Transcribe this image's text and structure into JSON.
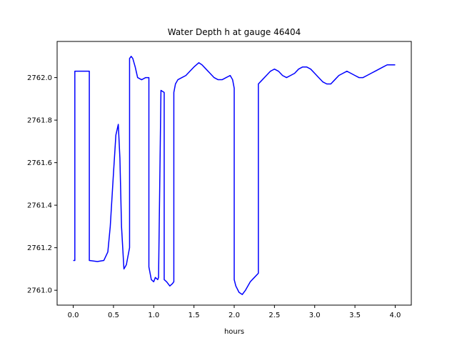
{
  "chart_data": {
    "type": "line",
    "title": "Water Depth h at gauge 46404",
    "xlabel": "hours",
    "ylabel": "",
    "xlim": [
      -0.2,
      4.2
    ],
    "ylim": [
      2760.93,
      2762.17
    ],
    "xticks": [
      0.0,
      0.5,
      1.0,
      1.5,
      2.0,
      2.5,
      3.0,
      3.5,
      4.0
    ],
    "xtick_labels": [
      "0.0",
      "0.5",
      "1.0",
      "1.5",
      "2.0",
      "2.5",
      "3.0",
      "3.5",
      "4.0"
    ],
    "yticks": [
      2761.0,
      2761.2,
      2761.4,
      2761.6,
      2761.8,
      2762.0
    ],
    "ytick_labels": [
      "2761.0",
      "2761.2",
      "2761.4",
      "2761.6",
      "2761.8",
      "2762.0"
    ],
    "grid": false,
    "series": [
      {
        "color": "#0000ff",
        "x": [
          0.0,
          0.02,
          0.02,
          0.2,
          0.2,
          0.3,
          0.38,
          0.43,
          0.46,
          0.5,
          0.53,
          0.56,
          0.58,
          0.6,
          0.63,
          0.66,
          0.7,
          0.7,
          0.72,
          0.74,
          0.77,
          0.8,
          0.85,
          0.9,
          0.94,
          0.94,
          0.95,
          0.97,
          1.0,
          1.02,
          1.05,
          1.06,
          1.09,
          1.09,
          1.13,
          1.13,
          1.16,
          1.2,
          1.23,
          1.25,
          1.25,
          1.27,
          1.3,
          1.35,
          1.4,
          1.45,
          1.5,
          1.56,
          1.6,
          1.65,
          1.7,
          1.75,
          1.8,
          1.85,
          1.9,
          1.95,
          1.98,
          2.0,
          2.0,
          2.02,
          2.06,
          2.1,
          2.14,
          2.2,
          2.25,
          2.3,
          2.3,
          2.35,
          2.4,
          2.45,
          2.5,
          2.55,
          2.6,
          2.65,
          2.7,
          2.75,
          2.8,
          2.85,
          2.9,
          2.95,
          3.0,
          3.05,
          3.1,
          3.15,
          3.2,
          3.25,
          3.3,
          3.35,
          3.4,
          3.45,
          3.5,
          3.55,
          3.6,
          3.65,
          3.7,
          3.75,
          3.8,
          3.85,
          3.9,
          3.95,
          4.0
        ],
        "y": [
          2761.14,
          2761.14,
          2762.03,
          2762.03,
          2761.14,
          2761.135,
          2761.14,
          2761.18,
          2761.3,
          2761.55,
          2761.73,
          2761.78,
          2761.62,
          2761.3,
          2761.1,
          2761.12,
          2761.2,
          2762.09,
          2762.1,
          2762.09,
          2762.05,
          2762.0,
          2761.99,
          2762.0,
          2762.0,
          2761.11,
          2761.09,
          2761.05,
          2761.04,
          2761.06,
          2761.05,
          2761.06,
          2761.94,
          2761.94,
          2761.93,
          2761.05,
          2761.04,
          2761.02,
          2761.03,
          2761.04,
          2761.93,
          2761.97,
          2761.99,
          2762.0,
          2762.01,
          2762.03,
          2762.05,
          2762.07,
          2762.06,
          2762.04,
          2762.02,
          2762.0,
          2761.99,
          2761.99,
          2762.0,
          2762.01,
          2761.99,
          2761.95,
          2761.05,
          2761.02,
          2760.99,
          2760.98,
          2761.0,
          2761.04,
          2761.06,
          2761.08,
          2761.97,
          2761.99,
          2762.01,
          2762.03,
          2762.04,
          2762.03,
          2762.01,
          2762.0,
          2762.01,
          2762.02,
          2762.04,
          2762.05,
          2762.05,
          2762.04,
          2762.02,
          2762.0,
          2761.98,
          2761.97,
          2761.97,
          2761.99,
          2762.01,
          2762.02,
          2762.03,
          2762.02,
          2762.01,
          2762.0,
          2762.0,
          2762.01,
          2762.02,
          2762.03,
          2762.04,
          2762.05,
          2762.06,
          2762.06,
          2762.06
        ]
      }
    ]
  }
}
